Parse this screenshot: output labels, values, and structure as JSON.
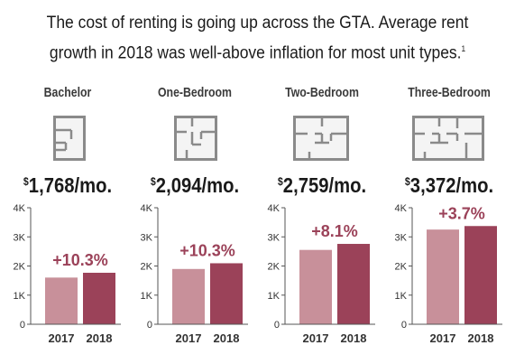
{
  "title": {
    "line1": "The cost of renting is going up across the GTA. Average rent",
    "line2": "growth in 2018 was well-above inflation for most unit types.",
    "footnote": "1"
  },
  "units": [
    {
      "name": "Bachelor",
      "currency": "$",
      "price": "1,768/mo.",
      "icon": "floorplan-bachelor-icon"
    },
    {
      "name": "One-Bedroom",
      "currency": "$",
      "price": "2,094/mo.",
      "icon": "floorplan-one-bedroom-icon"
    },
    {
      "name": "Two-Bedroom",
      "currency": "$",
      "price": "2,759/mo.",
      "icon": "floorplan-two-bedroom-icon"
    },
    {
      "name": "Three-Bedroom",
      "currency": "$",
      "price": "3,372/mo.",
      "icon": "floorplan-three-bedroom-icon"
    }
  ],
  "colors": {
    "bar_2017": "#c8909a",
    "bar_2018": "#9b4259",
    "growth_label": "#9b4259",
    "axis": "#555555",
    "icon": "#8a8a8a"
  },
  "chart_data": [
    {
      "type": "bar",
      "title": "Bachelor",
      "categories": [
        "2017",
        "2018"
      ],
      "values": [
        1603,
        1768
      ],
      "growth_label": "+10.3%",
      "ylim": [
        0,
        4000
      ],
      "yticks": [
        "0",
        "1K",
        "2K",
        "3K",
        "4K"
      ]
    },
    {
      "type": "bar",
      "title": "One-Bedroom",
      "categories": [
        "2017",
        "2018"
      ],
      "values": [
        1898,
        2094
      ],
      "growth_label": "+10.3%",
      "ylim": [
        0,
        4000
      ],
      "yticks": [
        "0",
        "1K",
        "2K",
        "3K",
        "4K"
      ]
    },
    {
      "type": "bar",
      "title": "Two-Bedroom",
      "categories": [
        "2017",
        "2018"
      ],
      "values": [
        2552,
        2759
      ],
      "growth_label": "+8.1%",
      "ylim": [
        0,
        4000
      ],
      "yticks": [
        "0",
        "1K",
        "2K",
        "3K",
        "4K"
      ]
    },
    {
      "type": "bar",
      "title": "Three-Bedroom",
      "categories": [
        "2017",
        "2018"
      ],
      "values": [
        3251,
        3372
      ],
      "growth_label": "+3.7%",
      "ylim": [
        0,
        4000
      ],
      "yticks": [
        "0",
        "1K",
        "2K",
        "3K",
        "4K"
      ]
    }
  ]
}
